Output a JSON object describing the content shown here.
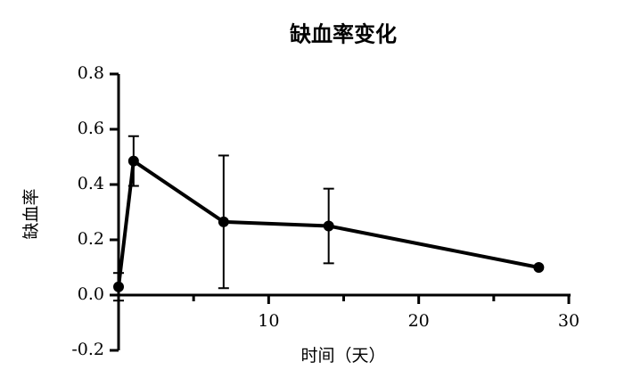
{
  "chart_data": {
    "type": "line",
    "title": "缺血率变化",
    "x_label": "时间（天）",
    "y_label": "缺血率",
    "x": [
      0,
      1,
      7,
      14,
      28
    ],
    "series": [
      {
        "color": "#000000",
        "values": [
          0.03,
          0.485,
          0.265,
          0.25,
          0.1
        ],
        "errors": [
          0.05,
          0.09,
          0.24,
          0.135,
          null
        ]
      }
    ],
    "xlim": [
      0,
      30
    ],
    "xticks": [
      10,
      20,
      30
    ],
    "xminor_ticks": [
      5,
      15,
      25
    ],
    "ylim": [
      -0.2,
      0.8
    ],
    "yticks": [
      0.8,
      0.6,
      0.4,
      0.2,
      {
        "value": 0,
        "label": "0.0"
      },
      -0.2
    ]
  }
}
